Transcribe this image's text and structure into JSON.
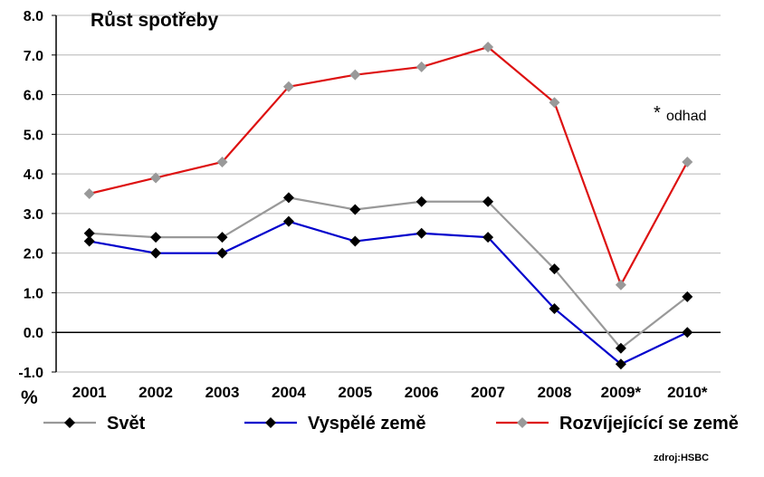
{
  "chart_data": {
    "type": "line",
    "title": "Růst spotřeby",
    "ylabel": "%",
    "xlabel": "",
    "ylim": [
      -1.0,
      8.0
    ],
    "yticks": [
      "8.0",
      "7.0",
      "6.0",
      "5.0",
      "4.0",
      "3.0",
      "2.0",
      "1.0",
      "0.0",
      "-1.0"
    ],
    "categories": [
      "2001",
      "2002",
      "2003",
      "2004",
      "2005",
      "2006",
      "2007",
      "2008",
      "2009*",
      "2010*"
    ],
    "grid": true,
    "legend_position": "bottom",
    "series": [
      {
        "name": "Svět",
        "color": "#999999",
        "marker_color": "#000000",
        "values": [
          2.5,
          2.4,
          2.4,
          3.4,
          3.1,
          3.3,
          3.3,
          1.6,
          -0.4,
          0.9
        ]
      },
      {
        "name": "Vyspělé země",
        "color": "#0000cc",
        "marker_color": "#000000",
        "values": [
          2.3,
          2.0,
          2.0,
          2.8,
          2.3,
          2.5,
          2.4,
          0.6,
          -0.8,
          0.0
        ]
      },
      {
        "name": "Rozvíjejícící se země",
        "color": "#dd1111",
        "marker_color": "#999999",
        "values": [
          3.5,
          3.9,
          4.3,
          6.2,
          6.5,
          6.7,
          7.2,
          5.8,
          1.2,
          4.3
        ]
      }
    ],
    "annotations": {
      "estimate_star": "*",
      "estimate_note": "odhad",
      "source": "zdroj:HSBC"
    }
  }
}
